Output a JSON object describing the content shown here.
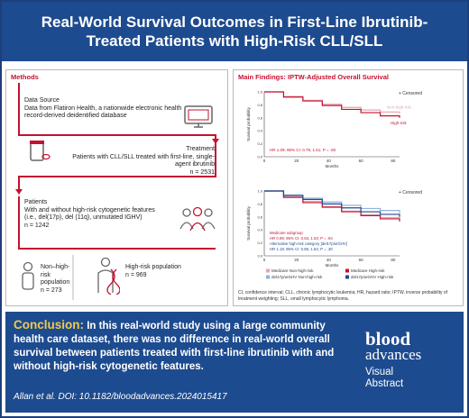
{
  "header": {
    "title": "Real-World Survival Outcomes in First-Line Ibrutinib-Treated Patients with High-Risk CLL/SLL"
  },
  "methods": {
    "title": "Methods",
    "data_source_heading": "Data Source",
    "data_source_text": "Data from Flatiron Health, a nationwide electronic health record-derived deidentified database",
    "treatment_heading": "Treatment",
    "treatment_text": "Patients with CLL/SLL treated with first-line, single-agent ibrutinib",
    "treatment_n": "n = 2531",
    "patients_heading": "Patients",
    "patients_text": "With and without high-risk cytogenetic features (i.e., del(17p), del (11q), unmutated IGHV)",
    "patients_n": "n = 1242",
    "nonhigh_label": "Non–high-risk population",
    "nonhigh_n": "n = 273",
    "high_label": "High-risk population",
    "high_n": "n = 969"
  },
  "findings": {
    "title": "Main Findings: IPTW-Adjusted Overall Survival",
    "footnote": "CI, confidence interval; CLL, chronic lymphocytic leukemia; HR, hazard ratio; IPTW, inverse probability of treatment weighting; SLL, small lymphocytic lymphoma."
  },
  "chart_data": [
    {
      "type": "line",
      "xlabel": "Months",
      "ylabel": "Survival probability",
      "x_ticks": [
        "0",
        "20",
        "40",
        "60",
        "80"
      ],
      "y_ticks": [
        "0.0",
        "0.2",
        "0.4",
        "0.6",
        "0.8",
        "1.0"
      ],
      "xlim": [
        0,
        84
      ],
      "ylim": [
        0,
        1
      ],
      "censored_label": "+ Censored",
      "series": [
        {
          "name": "Non-high-risk",
          "color": "#e7a3b0",
          "x": [
            0,
            12,
            24,
            36,
            48,
            60,
            72,
            84
          ],
          "y": [
            1.0,
            0.93,
            0.87,
            0.81,
            0.76,
            0.72,
            0.69,
            0.67
          ]
        },
        {
          "name": "High-risk",
          "color": "#c4122f",
          "x": [
            0,
            12,
            24,
            36,
            48,
            60,
            72,
            84
          ],
          "y": [
            1.0,
            0.92,
            0.86,
            0.79,
            0.73,
            0.68,
            0.63,
            0.6
          ]
        }
      ],
      "annotation": "HR 1.09; 95% CI: 0.79, 1.51; P = .60"
    },
    {
      "type": "line",
      "xlabel": "Months",
      "ylabel": "Survival probability",
      "x_ticks": [
        "0",
        "20",
        "40",
        "60",
        "80"
      ],
      "y_ticks": [
        "0.0",
        "0.2",
        "0.4",
        "0.6",
        "0.8",
        "1.0"
      ],
      "xlim": [
        0,
        84
      ],
      "ylim": [
        0,
        1
      ],
      "censored_label": "+ Censored",
      "series": [
        {
          "name": "Medicare Non-high-risk",
          "color": "#e7a3b0",
          "x": [
            0,
            12,
            24,
            36,
            48,
            60,
            72,
            84
          ],
          "y": [
            1.0,
            0.91,
            0.84,
            0.76,
            0.69,
            0.63,
            0.59,
            0.55
          ]
        },
        {
          "name": "Medicare High-risk",
          "color": "#c4122f",
          "x": [
            0,
            12,
            24,
            36,
            48,
            60,
            72,
            84
          ],
          "y": [
            1.0,
            0.9,
            0.82,
            0.75,
            0.68,
            0.62,
            0.57,
            0.53
          ]
        },
        {
          "name": "del17p/uIGHV Non-high-risk",
          "color": "#8fb3df",
          "x": [
            0,
            12,
            24,
            36,
            48,
            60,
            72,
            84
          ],
          "y": [
            1.0,
            0.94,
            0.89,
            0.83,
            0.78,
            0.73,
            0.7,
            0.66
          ]
        },
        {
          "name": "del17p/uIGHV High-risk",
          "color": "#1d4b8f",
          "x": [
            0,
            12,
            24,
            36,
            48,
            60,
            72,
            84
          ],
          "y": [
            1.0,
            0.93,
            0.87,
            0.8,
            0.74,
            0.68,
            0.64,
            0.6
          ]
        }
      ],
      "annotations": [
        "Medicare subgroup",
        "HR 0.98; 95% CI: 0.63, 1.53; P = .94",
        "Alternative high-risk category [del17p/uIGHV]",
        "HR 1.19; 95% CI: 0.86, 1.64; P = .30"
      ]
    }
  ],
  "conclusion": {
    "lead": "Conclusion:",
    "text": "In this real-world study using a large community health care dataset, there was no difference in real-world overall survival between patients treated with first-line ibrutinib with and without high-risk cytogenetic features.",
    "citation": "Allan et al. DOI: 10.1182/bloodadvances.2024015417"
  },
  "logo": {
    "line1": "blood",
    "line2": "advances",
    "line3": "Visual",
    "line4": "Abstract"
  },
  "colors": {
    "navy": "#1d4b8f",
    "red": "#c4122f",
    "gold": "#f2c94c"
  }
}
